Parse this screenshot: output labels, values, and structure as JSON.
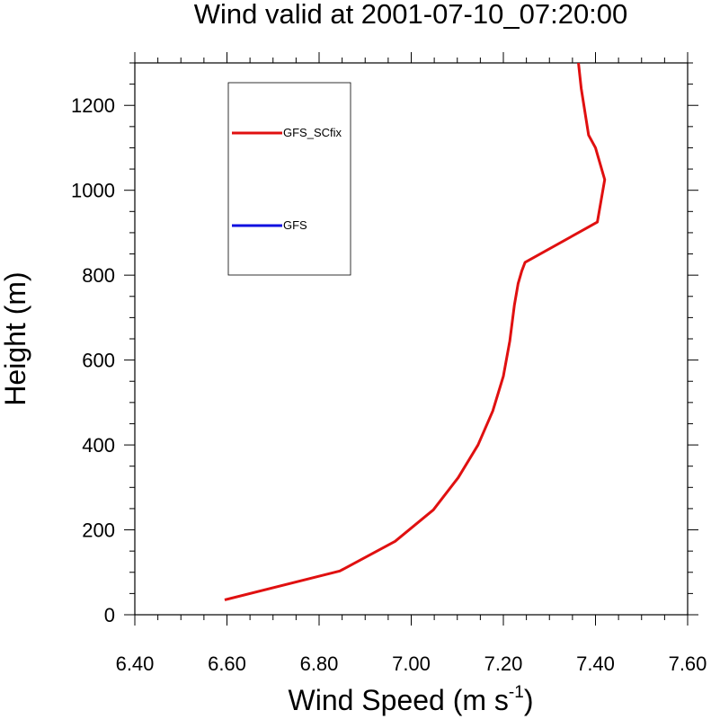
{
  "chart_data": {
    "type": "line",
    "title": "Wind valid at 2001-07-10_07:20:00",
    "xlabel": "Wind Speed (m s",
    "xlabel_superscript": "-1",
    "xlabel_suffix": ")",
    "ylabel": "Height (m)",
    "xlim": [
      6.4,
      7.6
    ],
    "ylim": [
      0,
      1300
    ],
    "xticks": [
      6.4,
      6.6,
      6.8,
      7.0,
      7.2,
      7.4,
      7.6
    ],
    "xtick_labels": [
      "6.40",
      "6.60",
      "6.80",
      "7.00",
      "7.20",
      "7.40",
      "7.60"
    ],
    "yticks": [
      0,
      200,
      400,
      600,
      800,
      1000,
      1200
    ],
    "ytick_labels": [
      "0",
      "200",
      "400",
      "600",
      "800",
      "1000",
      "1200"
    ],
    "grid": false,
    "legend_placement": "top-left",
    "series": [
      {
        "name": "GFS_SCfix",
        "color": "#e01010",
        "x": [
          6.595,
          6.845,
          6.965,
          7.048,
          7.102,
          7.145,
          7.177,
          7.2,
          7.214,
          7.224,
          7.232,
          7.24,
          7.247,
          7.404,
          7.42,
          7.4,
          7.385,
          7.369,
          7.363
        ],
        "y": [
          35,
          103,
          173,
          247,
          323,
          400,
          480,
          562,
          645,
          730,
          780,
          810,
          830,
          925,
          1025,
          1100,
          1130,
          1240,
          1300
        ]
      },
      {
        "name": "GFS",
        "color": "#1010e0",
        "x": [],
        "y": []
      }
    ]
  }
}
